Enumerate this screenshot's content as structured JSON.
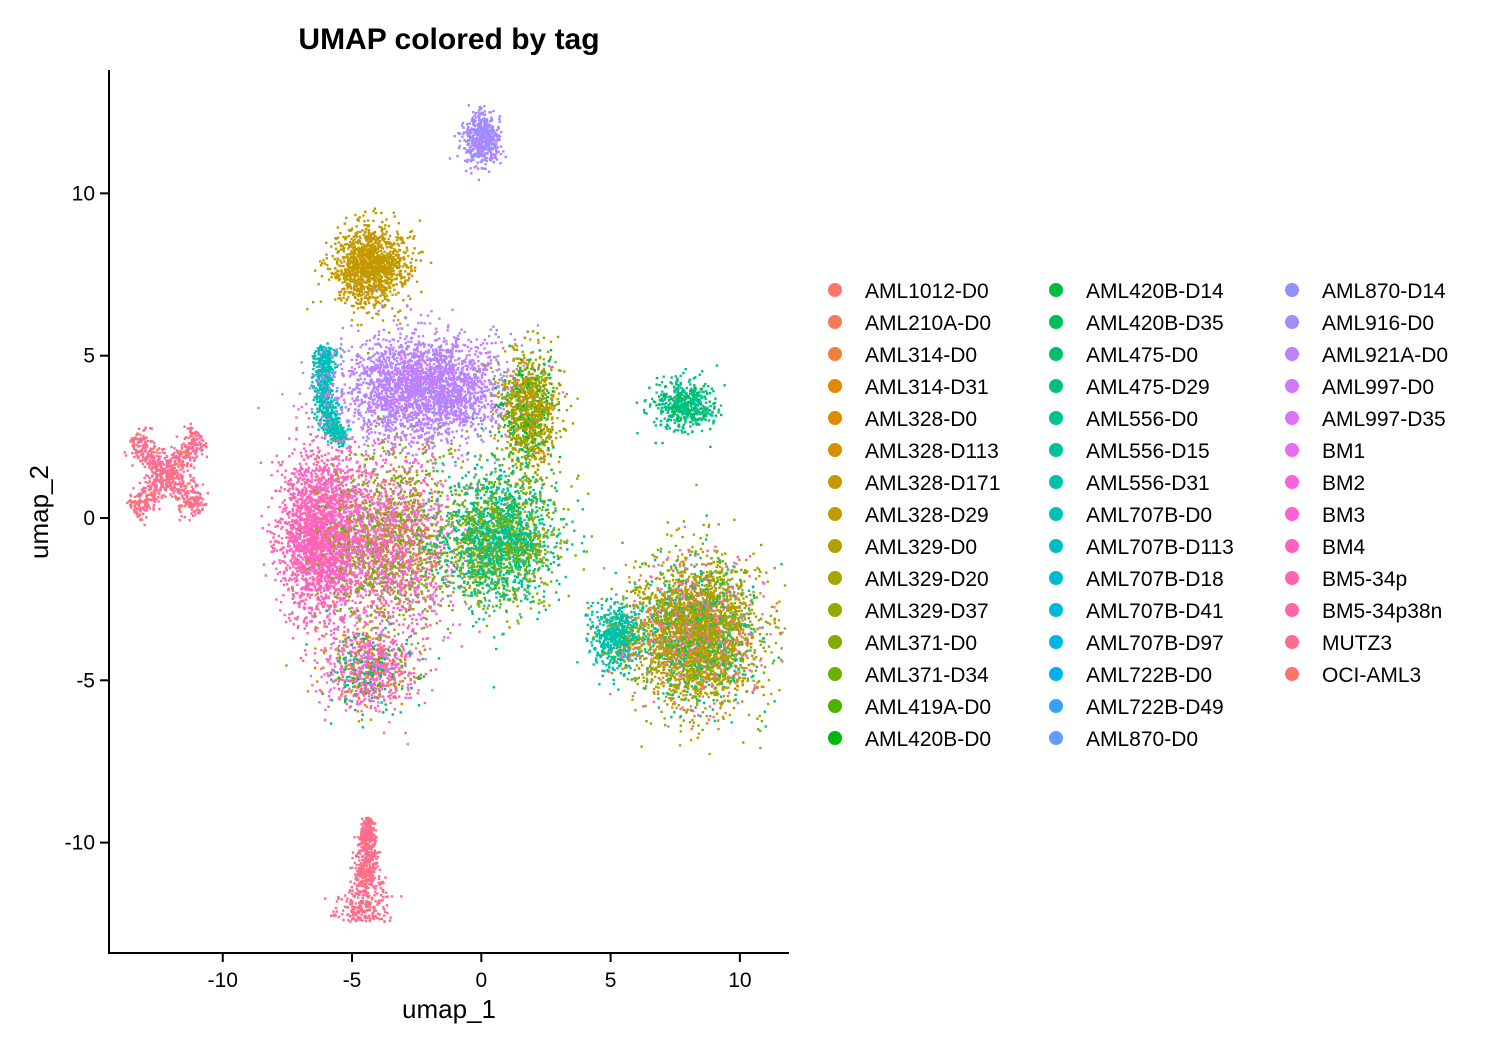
{
  "chart_data": {
    "type": "scatter",
    "title": "UMAP colored by tag",
    "xlabel": "umap_1",
    "ylabel": "umap_2",
    "xlim": [
      -14.4,
      11.9
    ],
    "ylim": [
      -13.4,
      13.8
    ],
    "x_ticks": [
      -10,
      -5,
      0,
      5,
      10
    ],
    "y_ticks": [
      -10,
      -5,
      0,
      5,
      10
    ],
    "grid": false,
    "legend_position": "right",
    "legend_columns": 3,
    "series": [
      {
        "name": "AML1012-D0",
        "color": "#F8766D"
      },
      {
        "name": "AML210A-D0",
        "color": "#F37B59"
      },
      {
        "name": "AML314-D0",
        "color": "#ED813E"
      },
      {
        "name": "AML314-D31",
        "color": "#E58700"
      },
      {
        "name": "AML328-D0",
        "color": "#DE8C00"
      },
      {
        "name": "AML328-D113",
        "color": "#D49200"
      },
      {
        "name": "AML328-D171",
        "color": "#C99800"
      },
      {
        "name": "AML328-D29",
        "color": "#BF9D00"
      },
      {
        "name": "AML329-D0",
        "color": "#B3A000"
      },
      {
        "name": "AML329-D20",
        "color": "#A5A400"
      },
      {
        "name": "AML329-D37",
        "color": "#96A900"
      },
      {
        "name": "AML371-D0",
        "color": "#82AD00"
      },
      {
        "name": "AML371-D34",
        "color": "#6BB100"
      },
      {
        "name": "AML419A-D0",
        "color": "#4BB400"
      },
      {
        "name": "AML420B-D0",
        "color": "#00B70C"
      },
      {
        "name": "AML420B-D14",
        "color": "#00BA42"
      },
      {
        "name": "AML420B-D35",
        "color": "#00BC59"
      },
      {
        "name": "AML475-D0",
        "color": "#00BE6C"
      },
      {
        "name": "AML475-D29",
        "color": "#00C07C"
      },
      {
        "name": "AML556-D0",
        "color": "#00C08B"
      },
      {
        "name": "AML556-D15",
        "color": "#00C19A"
      },
      {
        "name": "AML556-D31",
        "color": "#00C0A8"
      },
      {
        "name": "AML707B-D0",
        "color": "#00BFB6"
      },
      {
        "name": "AML707B-D113",
        "color": "#00BDC2"
      },
      {
        "name": "AML707B-D18",
        "color": "#00BBCF"
      },
      {
        "name": "AML707B-D41",
        "color": "#00B8DA"
      },
      {
        "name": "AML707B-D97",
        "color": "#00B4E5"
      },
      {
        "name": "AML722B-D0",
        "color": "#00AEF0"
      },
      {
        "name": "AML722B-D49",
        "color": "#35A2FF"
      },
      {
        "name": "AML870-D0",
        "color": "#619CFF"
      },
      {
        "name": "AML870-D14",
        "color": "#8F91FF"
      },
      {
        "name": "AML916-D0",
        "color": "#A58AFF"
      },
      {
        "name": "AML921A-D0",
        "color": "#B983FF"
      },
      {
        "name": "AML997-D0",
        "color": "#D078FF"
      },
      {
        "name": "AML997-D35",
        "color": "#DE71F9"
      },
      {
        "name": "BM1",
        "color": "#EA6AF0"
      },
      {
        "name": "BM2",
        "color": "#F565E3"
      },
      {
        "name": "BM3",
        "color": "#FA62D5"
      },
      {
        "name": "BM4",
        "color": "#FF62BC"
      },
      {
        "name": "BM5-34p",
        "color": "#FF64AF"
      },
      {
        "name": "BM5-34p38n",
        "color": "#FF67A4"
      },
      {
        "name": "MUTZ3",
        "color": "#FB6E8E"
      },
      {
        "name": "OCI-AML3",
        "color": "#F8766D"
      }
    ],
    "clusters": [
      {
        "center": [
          -12.2,
          1.4
        ],
        "spread": [
          0.7,
          0.7
        ],
        "count": 900,
        "shape": "x",
        "tags": [
          "MUTZ3",
          "BM5-34p38n",
          "OCI-AML3"
        ]
      },
      {
        "center": [
          -4.6,
          -11.4
        ],
        "spread": [
          0.35,
          0.8
        ],
        "count": 700,
        "shape": "tail",
        "tags": [
          "MUTZ3",
          "OCI-AML3",
          "BM5-34p38n"
        ]
      },
      {
        "center": [
          0.0,
          11.7
        ],
        "spread": [
          0.35,
          0.4
        ],
        "count": 500,
        "shape": "blob",
        "tags": [
          "AML916-D0",
          "AML921A-D0",
          "AML870-D14"
        ]
      },
      {
        "center": [
          -4.3,
          7.8
        ],
        "spread": [
          0.7,
          0.6
        ],
        "count": 1300,
        "shape": "blob",
        "tags": [
          "AML328-D29",
          "AML328-D171",
          "AML329-D0",
          "AML328-D113"
        ]
      },
      {
        "center": [
          -6.0,
          3.8
        ],
        "spread": [
          0.35,
          0.7
        ],
        "count": 700,
        "shape": "arc",
        "tags": [
          "AML707B-D0",
          "AML556-D31",
          "AML707B-D113"
        ]
      },
      {
        "center": [
          -2.3,
          4.0
        ],
        "spread": [
          1.6,
          0.8
        ],
        "count": 2600,
        "shape": "blob",
        "tags": [
          "AML921A-D0",
          "AML916-D0",
          "AML997-D0",
          "AML921A-D0"
        ]
      },
      {
        "center": [
          1.8,
          3.3
        ],
        "spread": [
          0.55,
          0.9
        ],
        "count": 1100,
        "shape": "blob",
        "tags": [
          "AML329-D37",
          "AML371-D0",
          "AML420B-D14",
          "AML328-D0",
          "AML329-D20"
        ]
      },
      {
        "center": [
          7.8,
          3.5
        ],
        "spread": [
          0.6,
          0.4
        ],
        "count": 500,
        "shape": "blob",
        "tags": [
          "AML556-D15",
          "AML420B-D35",
          "AML475-D29"
        ]
      },
      {
        "center": [
          -6.2,
          -0.5
        ],
        "spread": [
          0.8,
          1.3
        ],
        "count": 2400,
        "shape": "blob",
        "tags": [
          "BM4",
          "BM5-34p",
          "BM3",
          "BM5-34p38n"
        ]
      },
      {
        "center": [
          -3.6,
          -0.8
        ],
        "spread": [
          1.2,
          1.4
        ],
        "count": 2400,
        "shape": "blob",
        "tags": [
          "BM5-34p",
          "AML329-D37",
          "BM4",
          "AML1012-D0",
          "AML371-D34",
          "AML997-D35"
        ]
      },
      {
        "center": [
          0.6,
          -0.6
        ],
        "spread": [
          1.1,
          1.0
        ],
        "count": 2200,
        "shape": "blob",
        "tags": [
          "AML556-D0",
          "AML475-D29",
          "AML556-D15",
          "AML329-D37",
          "AML371-D0"
        ]
      },
      {
        "center": [
          -4.3,
          -4.6
        ],
        "spread": [
          0.9,
          0.6
        ],
        "count": 900,
        "shape": "blob",
        "tags": [
          "BM4",
          "BM5-34p",
          "AML997-D35",
          "AML475-D0",
          "AML314-D31"
        ]
      },
      {
        "center": [
          5.2,
          -3.6
        ],
        "spread": [
          0.5,
          0.5
        ],
        "count": 600,
        "shape": "blob",
        "tags": [
          "AML556-D31",
          "AML556-D15",
          "AML707B-D0"
        ]
      },
      {
        "center": [
          8.3,
          -3.5
        ],
        "spread": [
          1.2,
          1.1
        ],
        "count": 3600,
        "shape": "blob",
        "tags": [
          "AML328-D171",
          "AML329-D37",
          "AML371-D0",
          "AML556-D0",
          "BM5-34p",
          "AML328-D29",
          "AML329-D20"
        ]
      }
    ]
  }
}
